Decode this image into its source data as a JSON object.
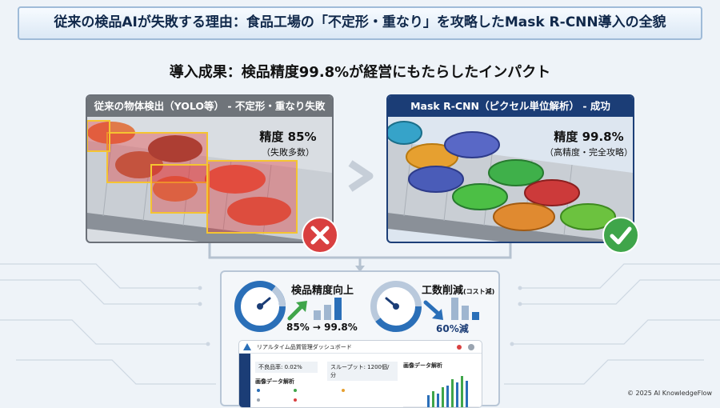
{
  "title": "従来の検品AIが失敗する理由：食品工場の「不定形・重なり」を攻略したMask R-CNN導入の全貌",
  "subtitle": "導入成果：検品精度99.8%が経営にもたらしたインパクト",
  "left_panel": {
    "header": "従来の物体検出（YOLO等） - 不定形・重なり失敗",
    "accuracy": "精度 85%",
    "note": "（失敗多数）",
    "status_icon": "cross-icon"
  },
  "right_panel": {
    "header": "Mask R-CNN（ピクセル単位解析） - 成功",
    "accuracy": "精度 99.8%",
    "note": "（高精度・完全攻略）",
    "status_icon": "check-icon"
  },
  "metrics": {
    "accuracy_title": "検品精度向上",
    "accuracy_value": "85% → 99.8%",
    "cost_title": "工数削減",
    "cost_title_suffix": "(コスト減)",
    "cost_value": "60%減"
  },
  "dashboard": {
    "title": "リアルタイム品質管理ダッシュボード",
    "defect_rate": "不良品率: 0.02%",
    "throughput": "スループット: 1200個/分",
    "analysis_left": "画像データ解析",
    "analysis_right": "画像データ解析"
  },
  "copyright": "© 2025 AI KnowledgeFlow",
  "colors": {
    "navy": "#1b3d76",
    "red": "#d94040",
    "green": "#3fa54a",
    "blue": "#2f6fb5"
  }
}
